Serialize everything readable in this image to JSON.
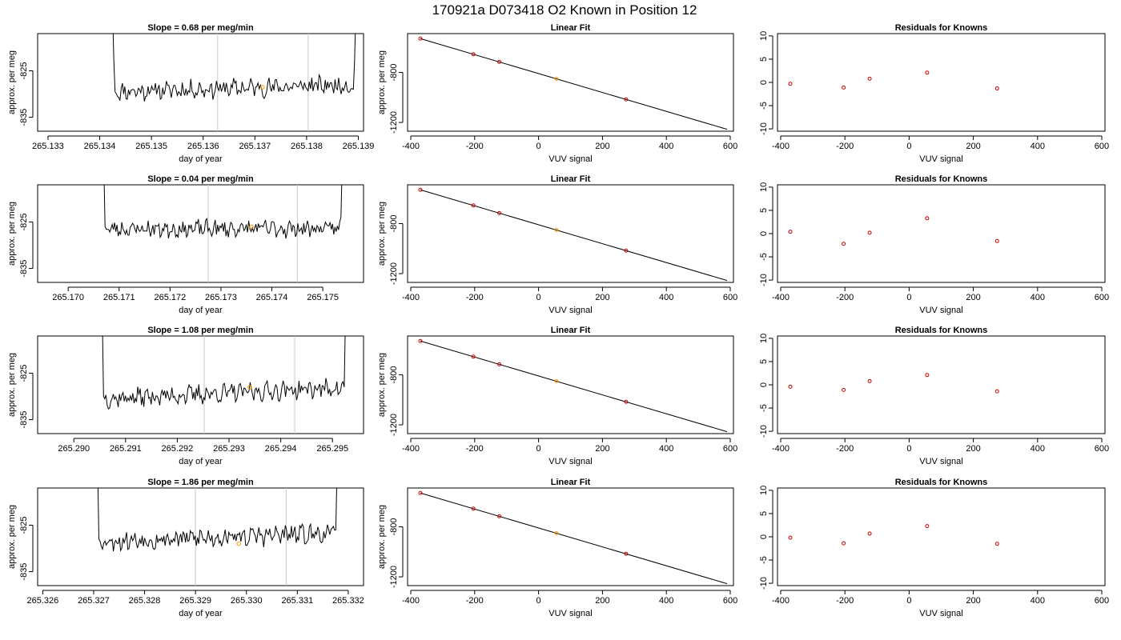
{
  "suptitle": "170921a     D073418   O2 Known in Position  12",
  "labels": {
    "day_of_year": "day of year",
    "per_meg": "approx. per meg",
    "vuv": "VUV signal",
    "linear_fit": "Linear Fit",
    "residuals": "Residuals for Knowns"
  },
  "colors": {
    "line": "#000000",
    "vline": "#c8c8c8",
    "known": "#ff9900",
    "resid": "#cc0000"
  },
  "chart_data": [
    {
      "type": "line",
      "row": 1,
      "panel": "time",
      "title": "Slope =  0.68  per meg/min",
      "xlabel": "day of year",
      "ylabel": "approx. per meg",
      "xlim": [
        265.1328,
        265.1391
      ],
      "ylim": [
        -838,
        -817
      ],
      "xticks": [
        "265.133",
        "265.134",
        "265.135",
        "265.136",
        "265.137",
        "265.138",
        "265.139"
      ],
      "yticks": [
        "-835",
        "-825"
      ],
      "trace_x": [
        265.13425,
        265.13895
      ],
      "trace_start": [
        -813,
        -823,
        -829.5
      ],
      "trace_end": [
        -829,
        -823,
        -813
      ],
      "trace_level": -829.5,
      "trace_drift": 1.5,
      "trace_noise": 1.6,
      "trace_seed": 11,
      "vlines": [
        265.13628,
        265.13803
      ],
      "marker": {
        "x": 265.13715,
        "y": -828.5
      }
    },
    {
      "type": "scatter",
      "row": 1,
      "panel": "fit",
      "title": "Linear Fit",
      "xlabel": "VUV signal",
      "ylabel": "approx. per meg",
      "xlim": [
        -410,
        610
      ],
      "ylim": [
        -1270,
        -490
      ],
      "xticks": [
        "-400",
        "-200",
        "0",
        "200",
        "400",
        "600"
      ],
      "yticks": [
        "-1200",
        "-800"
      ],
      "line": {
        "x": [
          -370,
          590
        ],
        "y": [
          -530,
          -1255
        ]
      },
      "points": [
        [
          -370,
          -530
        ],
        [
          -204,
          -655
        ],
        [
          -123,
          -716
        ],
        [
          56,
          -851
        ],
        [
          274,
          -1016
        ]
      ],
      "known_index": 3
    },
    {
      "type": "scatter",
      "row": 1,
      "panel": "resid",
      "title": "Residuals for Knowns",
      "xlabel": "VUV signal",
      "ylabel": "",
      "xlim": [
        -410,
        610
      ],
      "ylim": [
        -10.5,
        10.5
      ],
      "xticks": [
        "-400",
        "-200",
        "0",
        "200",
        "400",
        "600"
      ],
      "yticks": [
        "-10",
        "-5",
        "0",
        "5",
        "10"
      ],
      "points": [
        [
          -370,
          -0.3
        ],
        [
          -204,
          -1.1
        ],
        [
          -123,
          0.8
        ],
        [
          56,
          2.1
        ],
        [
          274,
          -1.3
        ]
      ]
    },
    {
      "type": "line",
      "row": 2,
      "panel": "time",
      "title": "Slope =  0.04  per meg/min",
      "xlabel": "day of year",
      "ylabel": "approx. per meg",
      "xlim": [
        265.1694,
        265.1758
      ],
      "ylim": [
        -838,
        -817
      ],
      "xticks": [
        "265.170",
        "265.171",
        "265.172",
        "265.173",
        "265.174",
        "265.175"
      ],
      "yticks": [
        "-835",
        "-825"
      ],
      "trace_x": [
        265.1707,
        265.17538
      ],
      "trace_start": [
        -813,
        -826
      ],
      "trace_end": [
        -824,
        -813
      ],
      "trace_level": -826.5,
      "trace_drift": 0.1,
      "trace_noise": 1.5,
      "trace_seed": 23,
      "vlines": [
        265.17275,
        265.1745
      ],
      "marker": {
        "x": 265.1736,
        "y": -826
      }
    },
    {
      "type": "scatter",
      "row": 2,
      "panel": "fit",
      "title": "Linear Fit",
      "xlabel": "VUV signal",
      "ylabel": "approx. per meg",
      "xlim": [
        -410,
        610
      ],
      "ylim": [
        -1270,
        -490
      ],
      "xticks": [
        "-400",
        "-200",
        "0",
        "200",
        "400",
        "600"
      ],
      "yticks": [
        "-1200",
        "-800"
      ],
      "line": {
        "x": [
          -370,
          590
        ],
        "y": [
          -530,
          -1255
        ]
      },
      "points": [
        [
          -370,
          -530
        ],
        [
          -204,
          -655
        ],
        [
          -123,
          -716
        ],
        [
          56,
          -851
        ],
        [
          274,
          -1016
        ]
      ],
      "known_index": 3
    },
    {
      "type": "scatter",
      "row": 2,
      "panel": "resid",
      "title": "Residuals for Knowns",
      "xlabel": "VUV signal",
      "ylabel": "",
      "xlim": [
        -410,
        610
      ],
      "ylim": [
        -10.5,
        10.5
      ],
      "xticks": [
        "-400",
        "-200",
        "0",
        "200",
        "400",
        "600"
      ],
      "yticks": [
        "-10",
        "-5",
        "0",
        "5",
        "10"
      ],
      "points": [
        [
          -370,
          0.4
        ],
        [
          -204,
          -2.2
        ],
        [
          -123,
          0.2
        ],
        [
          56,
          3.3
        ],
        [
          274,
          -1.6
        ]
      ]
    },
    {
      "type": "line",
      "row": 3,
      "panel": "time",
      "title": "Slope =  1.08  per meg/min",
      "xlabel": "day of year",
      "ylabel": "approx. per meg",
      "xlim": [
        265.2893,
        265.2956
      ],
      "ylim": [
        -838,
        -817
      ],
      "xticks": [
        "265.290",
        "265.291",
        "265.292",
        "265.293",
        "265.294",
        "265.295"
      ],
      "yticks": [
        "-835",
        "-825"
      ],
      "trace_x": [
        265.29055,
        265.29525
      ],
      "trace_start": [
        -813,
        -830
      ],
      "trace_end": [
        -828,
        -813
      ],
      "trace_level": -830.5,
      "trace_drift": 2.4,
      "trace_noise": 1.6,
      "trace_seed": 37,
      "vlines": [
        265.29252,
        265.29427
      ],
      "marker": {
        "x": 265.2934,
        "y": -828
      }
    },
    {
      "type": "scatter",
      "row": 3,
      "panel": "fit",
      "title": "Linear Fit",
      "xlabel": "VUV signal",
      "ylabel": "approx. per meg",
      "xlim": [
        -410,
        610
      ],
      "ylim": [
        -1270,
        -490
      ],
      "xticks": [
        "-400",
        "-200",
        "0",
        "200",
        "400",
        "600"
      ],
      "yticks": [
        "-1200",
        "-800"
      ],
      "line": {
        "x": [
          -370,
          590
        ],
        "y": [
          -530,
          -1255
        ]
      },
      "points": [
        [
          -370,
          -530
        ],
        [
          -204,
          -655
        ],
        [
          -123,
          -716
        ],
        [
          56,
          -851
        ],
        [
          274,
          -1016
        ]
      ],
      "known_index": 3
    },
    {
      "type": "scatter",
      "row": 3,
      "panel": "resid",
      "title": "Residuals for Knowns",
      "xlabel": "VUV signal",
      "ylabel": "",
      "xlim": [
        -410,
        610
      ],
      "ylim": [
        -10.5,
        10.5
      ],
      "xticks": [
        "-400",
        "-200",
        "0",
        "200",
        "400",
        "600"
      ],
      "yticks": [
        "-10",
        "-5",
        "0",
        "5",
        "10"
      ],
      "points": [
        [
          -370,
          -0.4
        ],
        [
          -204,
          -1.1
        ],
        [
          -123,
          0.8
        ],
        [
          56,
          2.1
        ],
        [
          274,
          -1.4
        ]
      ]
    },
    {
      "type": "line",
      "row": 4,
      "panel": "time",
      "title": "Slope =  1.86  per meg/min",
      "xlabel": "day of year",
      "ylabel": "approx. per meg",
      "xlim": [
        265.3259,
        265.3323
      ],
      "ylim": [
        -838,
        -817
      ],
      "xticks": [
        "265.326",
        "265.327",
        "265.328",
        "265.329",
        "265.330",
        "265.331",
        "265.332"
      ],
      "yticks": [
        "-835",
        "-825"
      ],
      "trace_x": [
        265.32708,
        265.33178
      ],
      "trace_start": [
        -813,
        -828
      ],
      "trace_end": [
        -826,
        -813
      ],
      "trace_level": -828.5,
      "trace_drift": 1.8,
      "trace_noise": 1.7,
      "trace_seed": 53,
      "vlines": [
        265.329,
        265.33078
      ],
      "marker": {
        "x": 265.32985,
        "y": -829
      }
    },
    {
      "type": "scatter",
      "row": 4,
      "panel": "fit",
      "title": "Linear Fit",
      "xlabel": "VUV signal",
      "ylabel": "approx. per meg",
      "xlim": [
        -410,
        610
      ],
      "ylim": [
        -1270,
        -490
      ],
      "xticks": [
        "-400",
        "-200",
        "0",
        "200",
        "400",
        "600"
      ],
      "yticks": [
        "-1200",
        "-800"
      ],
      "line": {
        "x": [
          -370,
          590
        ],
        "y": [
          -530,
          -1255
        ]
      },
      "points": [
        [
          -370,
          -530
        ],
        [
          -204,
          -655
        ],
        [
          -123,
          -716
        ],
        [
          56,
          -851
        ],
        [
          274,
          -1016
        ]
      ],
      "known_index": 3
    },
    {
      "type": "scatter",
      "row": 4,
      "panel": "resid",
      "title": "Residuals for Knowns",
      "xlabel": "VUV signal",
      "ylabel": "",
      "xlim": [
        -410,
        610
      ],
      "ylim": [
        -10.5,
        10.5
      ],
      "xticks": [
        "-400",
        "-200",
        "0",
        "200",
        "400",
        "600"
      ],
      "yticks": [
        "-10",
        "-5",
        "0",
        "5",
        "10"
      ],
      "points": [
        [
          -370,
          -0.2
        ],
        [
          -204,
          -1.4
        ],
        [
          -123,
          0.7
        ],
        [
          56,
          2.3
        ],
        [
          274,
          -1.5
        ]
      ]
    }
  ]
}
